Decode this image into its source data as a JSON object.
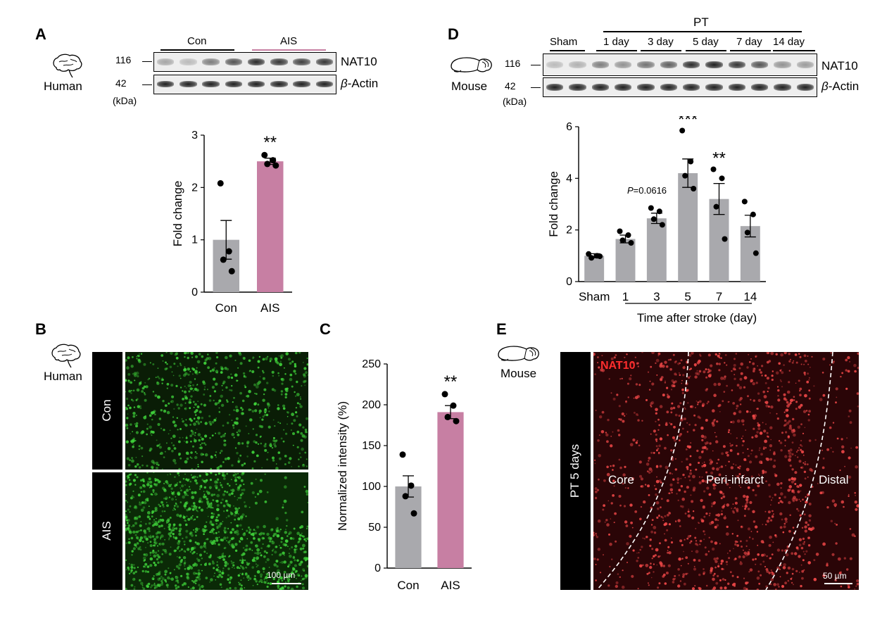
{
  "panels": {
    "a": "A",
    "b": "B",
    "c": "C",
    "d": "D",
    "e": "E"
  },
  "labels": {
    "human": "Human",
    "mouse": "Mouse"
  },
  "colors": {
    "con_bar": "#a9a9ad",
    "ais_bar": "#c77fa3",
    "pt_bar": "#a9a9ad",
    "green_puncta": "#3fd13a",
    "red_puncta": "#f04848",
    "ais_line": "#c77fa3"
  },
  "icons": {
    "brain_human": "human-brain-icon",
    "brain_mouse": "mouse-brain-icon"
  },
  "blot_a": {
    "groups": [
      "Con",
      "AIS"
    ],
    "mw": [
      "116",
      "42"
    ],
    "kda": "(kDa)",
    "targets": [
      "NAT10",
      "-Actin"
    ],
    "beta": "β"
  },
  "blot_d": {
    "top": "PT",
    "groups": [
      "Sham",
      "1 day",
      "3 day",
      "5 day",
      "7 day",
      "14 day"
    ],
    "mw": [
      "116",
      "42"
    ],
    "kda": "(kDa)",
    "targets": [
      "NAT10",
      "-Actin"
    ],
    "beta": "β"
  },
  "panel_b": {
    "rows": [
      "Con",
      "AIS"
    ],
    "scale_bar": "100 µm"
  },
  "panel_e": {
    "side": "PT 5 days",
    "stain": "NAT10",
    "regions": [
      "Core",
      "Peri-infarct",
      "Distal"
    ],
    "scale_bar": "50 µm"
  },
  "chart_data": [
    {
      "id": "A",
      "type": "bar",
      "categories": [
        "Con",
        "AIS"
      ],
      "values": [
        1.0,
        2.5
      ],
      "sem": [
        0.37,
        0.06
      ],
      "points": [
        [
          2.08,
          0.78,
          0.62,
          0.4
        ],
        [
          2.62,
          2.52,
          2.45,
          2.42
        ]
      ],
      "ylabel": "Fold change",
      "ylim": [
        0,
        3
      ],
      "yticks": [
        0,
        1,
        2,
        3
      ],
      "significance": [
        "",
        "**"
      ]
    },
    {
      "id": "C",
      "type": "bar",
      "categories": [
        "Con",
        "AIS"
      ],
      "values": [
        100,
        191
      ],
      "sem": [
        13,
        8
      ],
      "points": [
        [
          139,
          101,
          88,
          67
        ],
        [
          213,
          199,
          185,
          180
        ]
      ],
      "ylabel": "Normalized intensity (%)",
      "ylim": [
        0,
        250
      ],
      "yticks": [
        0,
        50,
        100,
        150,
        200,
        250
      ],
      "significance": [
        "",
        "**"
      ]
    },
    {
      "id": "D",
      "type": "bar",
      "categories": [
        "Sham",
        "1",
        "3",
        "5",
        "7",
        "14"
      ],
      "values": [
        1.0,
        1.65,
        2.45,
        4.2,
        3.2,
        2.15
      ],
      "sem": [
        0.08,
        0.15,
        0.2,
        0.55,
        0.6,
        0.42
      ],
      "points": [
        [
          1.07,
          1.0,
          0.92,
          0.98
        ],
        [
          1.95,
          1.8,
          1.6,
          1.5
        ],
        [
          2.85,
          2.72,
          2.42,
          2.2
        ],
        [
          5.85,
          4.65,
          4.1,
          3.6
        ],
        [
          4.35,
          4.0,
          2.9,
          1.65
        ],
        [
          3.1,
          2.6,
          1.9,
          1.1
        ]
      ],
      "ylabel": "Fold change",
      "xlabel": "Time after stroke (day)",
      "ylim": [
        0,
        6
      ],
      "yticks": [
        0,
        2,
        4,
        6
      ],
      "significance": [
        "",
        "",
        "",
        "***",
        "**",
        ""
      ],
      "annotation": {
        "p_italic": "P",
        "p_value": "=0.0616"
      }
    }
  ]
}
